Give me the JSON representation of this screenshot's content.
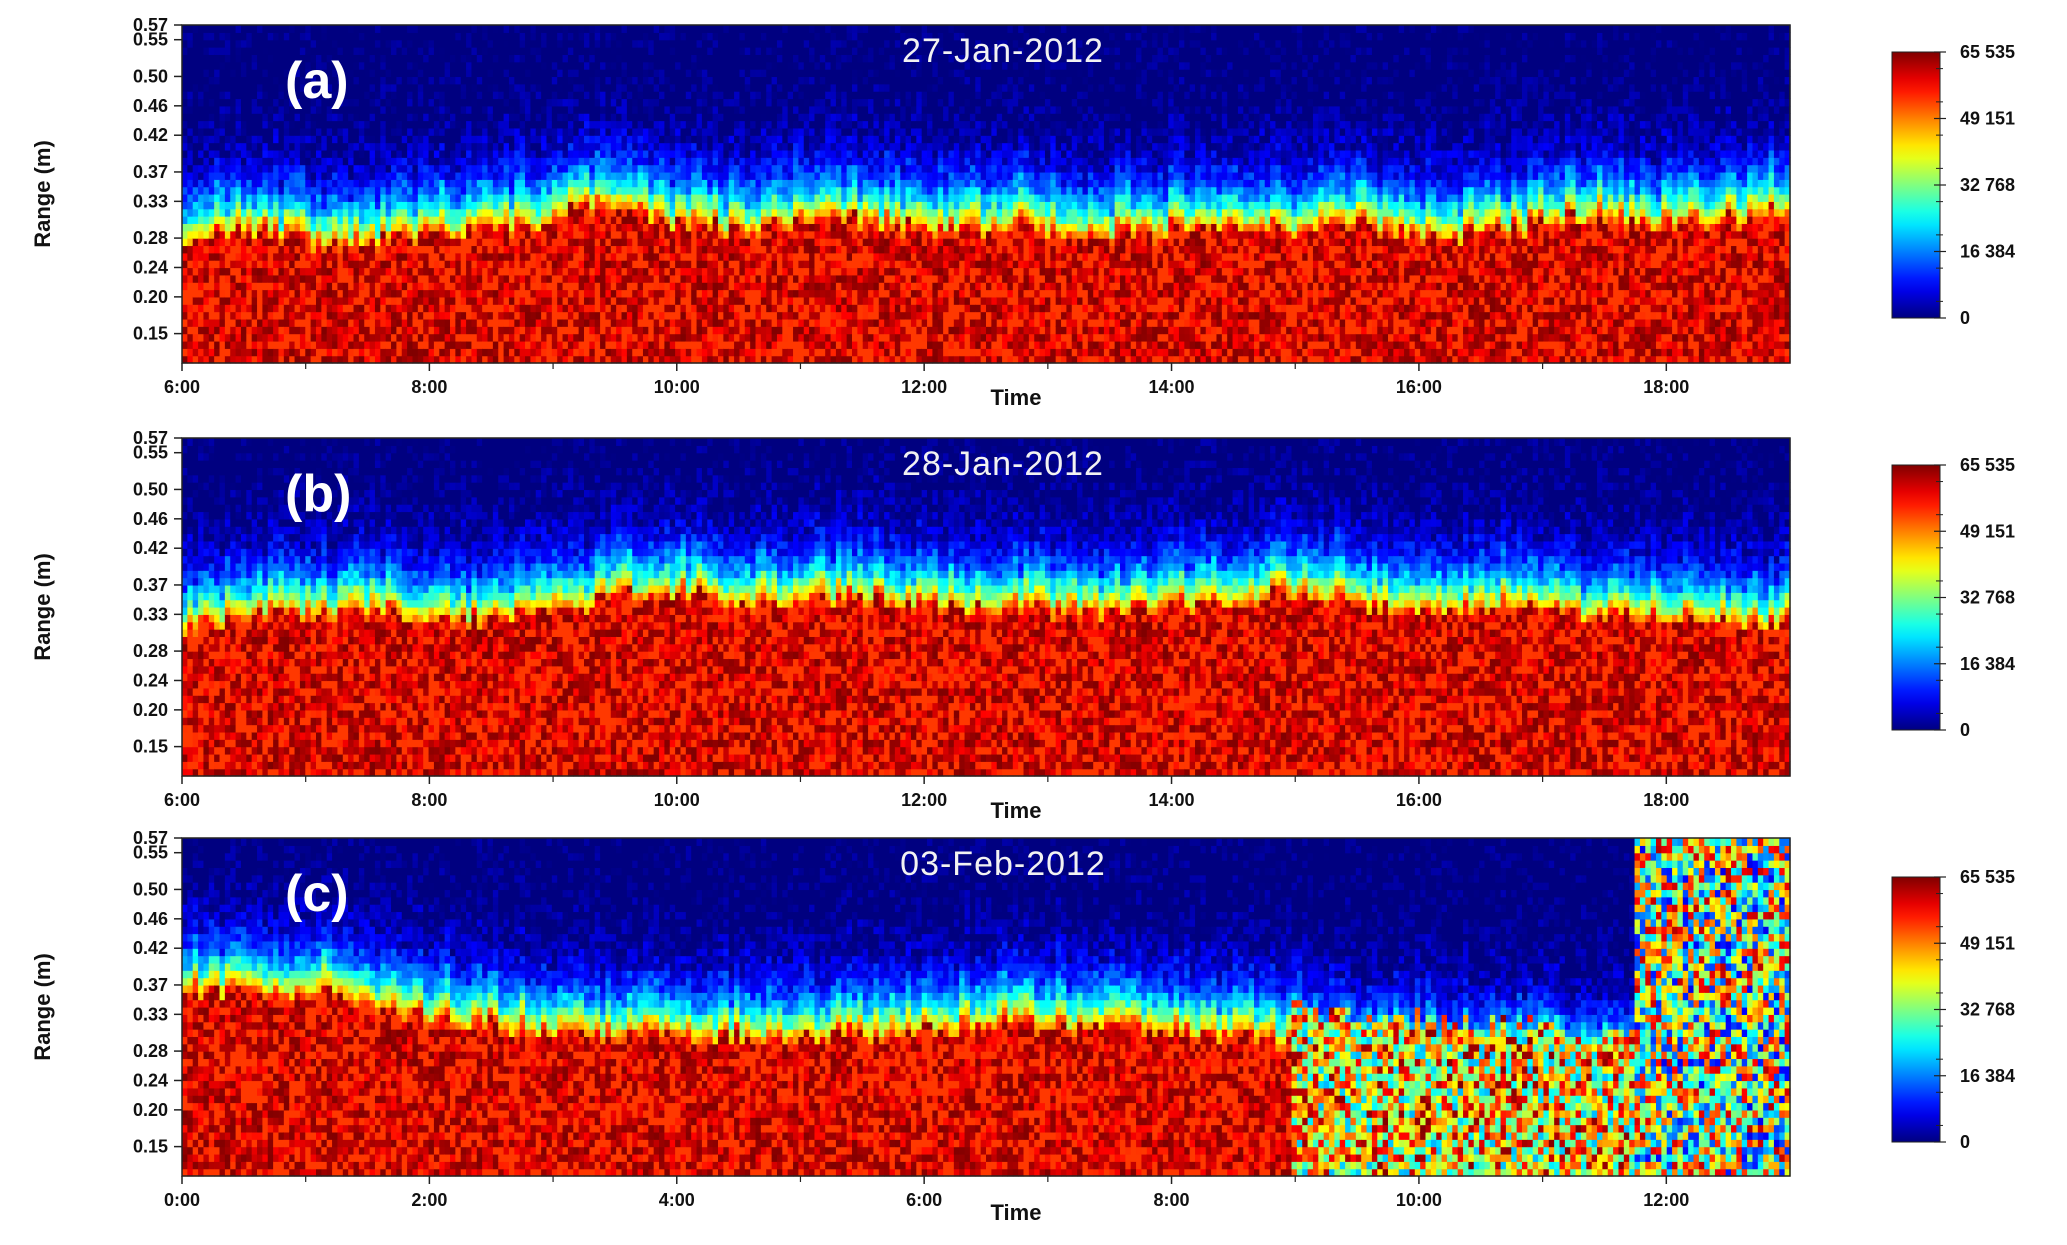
{
  "chart_data": [
    {
      "type": "heatmap",
      "panel_label": "(a)",
      "title": "27-Jan-2012",
      "xlabel": "Time",
      "ylabel": "Range (m)",
      "x_ticks": [
        "6:00",
        "8:00",
        "10:00",
        "12:00",
        "14:00",
        "16:00",
        "18:00"
      ],
      "x_range": [
        "6:00",
        "19:00"
      ],
      "y_ticks": [
        "0.15",
        "0.20",
        "0.24",
        "0.28",
        "0.33",
        "0.37",
        "0.42",
        "0.46",
        "0.50",
        "0.55",
        "0.57"
      ],
      "y_range": [
        0.11,
        0.57
      ],
      "colorbar": {
        "min": 0,
        "max": 65535,
        "ticks": [
          "65 535",
          "49 151",
          "32 768",
          "16 384",
          "0"
        ]
      },
      "surface_range_m": [
        0.28,
        0.29,
        0.27,
        0.28,
        0.29,
        0.3,
        0.33,
        0.3,
        0.29,
        0.31,
        0.3,
        0.29,
        0.3,
        0.28,
        0.29,
        0.3,
        0.29,
        0.3,
        0.28,
        0.29,
        0.31,
        0.3,
        0.3,
        0.32
      ],
      "notes": "Red (saturated) echo below ~0.28–0.32 m, green/cyan transition band ~0.30–0.39 m, blue to black above ~0.42 m"
    },
    {
      "type": "heatmap",
      "panel_label": "(b)",
      "title": "28-Jan-2012",
      "xlabel": "Time",
      "ylabel": "Range (m)",
      "x_ticks": [
        "6:00",
        "8:00",
        "10:00",
        "12:00",
        "14:00",
        "16:00",
        "18:00"
      ],
      "x_range": [
        "6:00",
        "19:00"
      ],
      "y_ticks": [
        "0.15",
        "0.20",
        "0.24",
        "0.28",
        "0.33",
        "0.37",
        "0.42",
        "0.46",
        "0.50",
        "0.55",
        "0.57"
      ],
      "y_range": [
        0.11,
        0.57
      ],
      "colorbar": {
        "min": 0,
        "max": 65535,
        "ticks": [
          "65 535",
          "49 151",
          "32 768",
          "16 384",
          "0"
        ]
      },
      "surface_range_m": [
        0.31,
        0.33,
        0.33,
        0.33,
        0.32,
        0.33,
        0.35,
        0.36,
        0.34,
        0.35,
        0.35,
        0.34,
        0.34,
        0.33,
        0.34,
        0.35,
        0.36,
        0.34,
        0.33,
        0.34,
        0.33,
        0.32,
        0.32,
        0.32
      ],
      "notes": "Red echo below ~0.32–0.36 m, transition band ~0.33–0.40 m, blue above ~0.42 m"
    },
    {
      "type": "heatmap",
      "panel_label": "(c)",
      "title": "03-Feb-2012",
      "xlabel": "Time",
      "ylabel": "Range (m)",
      "x_ticks": [
        "0:00",
        "2:00",
        "4:00",
        "6:00",
        "8:00",
        "10:00",
        "12:00"
      ],
      "x_range": [
        "0:00",
        "13:00"
      ],
      "y_ticks": [
        "0.15",
        "0.20",
        "0.24",
        "0.28",
        "0.33",
        "0.37",
        "0.42",
        "0.46",
        "0.50",
        "0.55",
        "0.57"
      ],
      "y_range": [
        0.11,
        0.57
      ],
      "colorbar": {
        "min": 0,
        "max": 65535,
        "ticks": [
          "65 535",
          "49 151",
          "32 768",
          "16 384",
          "0"
        ]
      },
      "surface_range_m": [
        0.36,
        0.36,
        0.36,
        0.33,
        0.32,
        0.31,
        0.3,
        0.3,
        0.3,
        0.3,
        0.3,
        0.31,
        0.32,
        0.31,
        0.31,
        0.3,
        0.29,
        0.28,
        0.27,
        0.27,
        0.26,
        0.26,
        0.25,
        0.25
      ],
      "notes": "Surface lowers through the day; speckled noise from ~9:00; broadband noise across full range after ~11:50"
    }
  ]
}
